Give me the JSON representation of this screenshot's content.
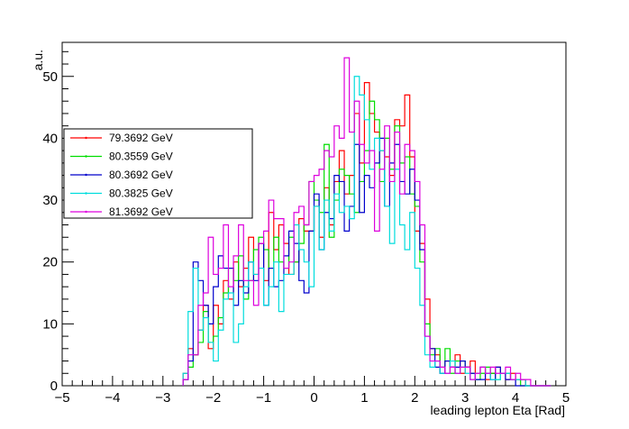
{
  "chart_data": {
    "type": "histogram",
    "title": "",
    "xlabel": "leading lepton Eta [Rad]",
    "ylabel": "a.u.",
    "xlim": [
      -5,
      5
    ],
    "ylim": [
      0,
      55.5
    ],
    "bin_width": 0.1,
    "x_start": -2.6,
    "x_ticks": [
      -5,
      -4,
      -3,
      -2,
      -1,
      0,
      1,
      2,
      3,
      4,
      5
    ],
    "y_ticks": [
      0,
      10,
      20,
      30,
      40,
      50
    ],
    "x_tick_labels": [
      "−5",
      "−4",
      "−3",
      "−2",
      "−1",
      "0",
      "1",
      "2",
      "3",
      "4",
      "5"
    ],
    "y_tick_labels": [
      "0",
      "10",
      "20",
      "30",
      "40",
      "50"
    ],
    "legend": {
      "position": "left",
      "entries": [
        "79.3692 GeV",
        "80.3559 GeV",
        "80.3692 GeV",
        "80.3825 GeV",
        "81.3692 GeV"
      ]
    },
    "series": [
      {
        "name": "79.3692 GeV",
        "color": "#ff0000",
        "values": [
          2,
          6,
          5,
          9,
          13,
          6,
          13,
          10,
          17,
          14,
          20,
          16,
          19,
          24,
          18,
          23,
          17,
          28,
          22,
          26,
          23,
          18,
          20,
          27,
          25,
          25,
          29,
          24,
          32,
          26,
          33,
          38,
          31,
          34,
          44,
          36,
          49,
          44,
          41,
          38,
          37,
          34,
          43,
          42,
          47,
          37,
          25,
          23,
          14,
          6,
          5,
          2,
          4,
          3,
          5,
          2,
          3,
          4,
          2,
          3,
          1,
          2,
          3,
          2,
          1,
          2,
          1,
          1,
          0,
          0,
          0,
          0,
          0
        ]
      },
      {
        "name": "80.3559 GeV",
        "color": "#00dd00",
        "values": [
          1,
          3,
          5,
          7,
          12,
          7,
          8,
          11,
          15,
          19,
          17,
          21,
          14,
          17,
          22,
          24,
          22,
          19,
          24,
          20,
          19,
          24,
          20,
          23,
          26,
          33,
          30,
          28,
          39,
          24,
          30,
          35,
          34,
          31,
          28,
          33,
          38,
          46,
          43,
          33,
          40,
          35,
          42,
          36,
          37,
          31,
          29,
          20,
          10,
          5,
          6,
          3,
          6,
          2,
          4,
          4,
          3,
          2,
          1,
          2,
          3,
          2,
          1,
          2,
          2,
          1,
          1,
          0,
          0,
          0,
          0,
          0,
          0
        ]
      },
      {
        "name": "80.3692 GeV",
        "color": "#0000cc",
        "values": [
          1,
          4,
          20,
          17,
          13,
          10,
          16,
          21,
          19,
          19,
          13,
          17,
          15,
          20,
          17,
          23,
          13,
          19,
          16,
          17,
          21,
          25,
          23,
          17,
          15,
          25,
          31,
          22,
          28,
          27,
          34,
          33,
          25,
          29,
          39,
          28,
          34,
          32,
          36,
          40,
          29,
          36,
          39,
          33,
          31,
          35,
          30,
          22,
          8,
          6,
          3,
          2,
          4,
          3,
          3,
          4,
          3,
          2,
          1,
          1,
          2,
          1,
          3,
          2,
          1,
          1,
          0,
          0,
          0,
          0,
          0,
          0,
          0
        ]
      },
      {
        "name": "80.3825 GeV",
        "color": "#00dddd",
        "values": [
          2,
          12,
          19,
          9,
          11,
          7,
          4,
          9,
          14,
          15,
          7,
          10,
          16,
          20,
          18,
          19,
          13,
          16,
          20,
          12,
          18,
          18,
          26,
          22,
          20,
          16,
          29,
          22,
          30,
          25,
          31,
          28,
          29,
          27,
          50,
          47,
          43,
          35,
          40,
          38,
          29,
          23,
          35,
          26,
          22,
          28,
          19,
          13,
          5,
          3,
          4,
          2,
          2,
          4,
          2,
          3,
          2,
          1,
          2,
          3,
          2,
          1,
          1,
          2,
          2,
          1,
          1,
          1,
          0,
          0,
          0,
          0,
          0
        ]
      },
      {
        "name": "81.3692 GeV",
        "color": "#dd00dd",
        "values": [
          1,
          5,
          5,
          13,
          15,
          24,
          18,
          19,
          26,
          16,
          21,
          26,
          17,
          17,
          13,
          23,
          25,
          30,
          27,
          27,
          19,
          20,
          28,
          29,
          26,
          33,
          34,
          35,
          38,
          37,
          42,
          40,
          53,
          41,
          46,
          39,
          36,
          38,
          25,
          35,
          42,
          33,
          41,
          31,
          39,
          38,
          33,
          26,
          8,
          4,
          4,
          3,
          2,
          3,
          2,
          3,
          3,
          1,
          2,
          3,
          2,
          3,
          2,
          2,
          3,
          1,
          2,
          1,
          1,
          0,
          0,
          0,
          0
        ]
      }
    ]
  }
}
